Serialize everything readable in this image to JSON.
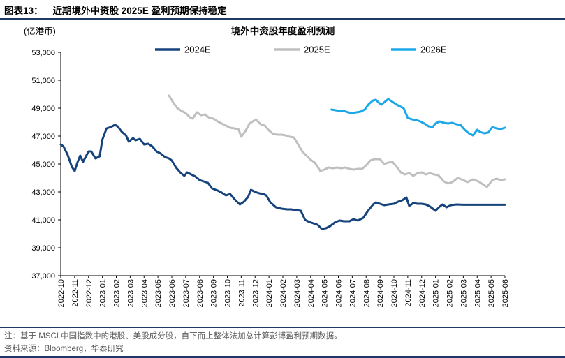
{
  "header": {
    "figure_label": "图表13：",
    "title": "近期境外中资股 2025E 盈利预期保持稳定"
  },
  "footer": {
    "note": "注：基于 MSCI 中国指数中的港股、美股成分股，自下而上整体法加总计算彭博盈利预期数据。",
    "source": "资料来源：Bloomberg，华泰研究"
  },
  "colors": {
    "rule": "#1F3864",
    "axis": "#000000",
    "note_text": "#595959"
  },
  "chart_data": {
    "type": "line",
    "title": "境外中资股年度盈利预测",
    "unit_label": "(亿港币)",
    "ylim": [
      37000,
      53000
    ],
    "ytick_step": 2000,
    "ytick_labels": [
      "37,000",
      "39,000",
      "41,000",
      "43,000",
      "45,000",
      "47,000",
      "49,000",
      "51,000",
      "53,000"
    ],
    "grid": false,
    "legend_position": "top",
    "x_categories": [
      "2022-10",
      "2022-11",
      "2022-12",
      "2023-01",
      "2023-02",
      "2023-03",
      "2023-04",
      "2023-05",
      "2023-06",
      "2023-07",
      "2023-08",
      "2023-09",
      "2023-10",
      "2023-11",
      "2023-12",
      "2024-01",
      "2024-02",
      "2024-03",
      "2024-04",
      "2024-05",
      "2024-06",
      "2024-07",
      "2024-08",
      "2024-09",
      "2024-10",
      "2024-11",
      "2024-12",
      "2025-01",
      "2025-02",
      "2025-03",
      "2025-04",
      "2025-05",
      "2025-06"
    ],
    "series": [
      {
        "name": "2024E",
        "color": "#16437C",
        "points": [
          [
            0,
            46400
          ],
          [
            0.2,
            46250
          ],
          [
            0.5,
            45650
          ],
          [
            0.8,
            44800
          ],
          [
            1,
            44500
          ],
          [
            1.2,
            45100
          ],
          [
            1.4,
            45600
          ],
          [
            1.6,
            45150
          ],
          [
            2,
            45900
          ],
          [
            2.2,
            45900
          ],
          [
            2.5,
            45400
          ],
          [
            2.8,
            45550
          ],
          [
            3,
            46750
          ],
          [
            3.3,
            47550
          ],
          [
            3.6,
            47650
          ],
          [
            3.9,
            47800
          ],
          [
            4.1,
            47700
          ],
          [
            4.4,
            47300
          ],
          [
            4.7,
            47050
          ],
          [
            4.9,
            46600
          ],
          [
            5.2,
            46850
          ],
          [
            5.4,
            46700
          ],
          [
            5.7,
            46800
          ],
          [
            6,
            46400
          ],
          [
            6.3,
            46450
          ],
          [
            6.6,
            46250
          ],
          [
            6.9,
            45900
          ],
          [
            7.2,
            45750
          ],
          [
            7.5,
            45500
          ],
          [
            7.8,
            45400
          ],
          [
            8,
            45250
          ],
          [
            8.3,
            44750
          ],
          [
            8.6,
            44400
          ],
          [
            8.9,
            44150
          ],
          [
            9.1,
            44400
          ],
          [
            9.4,
            44250
          ],
          [
            9.7,
            44100
          ],
          [
            10,
            43850
          ],
          [
            10.3,
            43750
          ],
          [
            10.6,
            43650
          ],
          [
            10.9,
            43250
          ],
          [
            11.3,
            43100
          ],
          [
            11.6,
            42950
          ],
          [
            11.9,
            42750
          ],
          [
            12.2,
            42850
          ],
          [
            12.5,
            42500
          ],
          [
            12.9,
            42100
          ],
          [
            13.2,
            42300
          ],
          [
            13.5,
            42650
          ],
          [
            13.7,
            43150
          ],
          [
            14,
            43000
          ],
          [
            14.3,
            42900
          ],
          [
            14.6,
            42850
          ],
          [
            14.8,
            42750
          ],
          [
            15.1,
            42250
          ],
          [
            15.5,
            41900
          ],
          [
            15.9,
            41800
          ],
          [
            16.3,
            41750
          ],
          [
            16.6,
            41750
          ],
          [
            16.9,
            41700
          ],
          [
            17.3,
            41650
          ],
          [
            17.6,
            41000
          ],
          [
            17.9,
            40850
          ],
          [
            18.2,
            40750
          ],
          [
            18.5,
            40650
          ],
          [
            18.8,
            40350
          ],
          [
            19.1,
            40400
          ],
          [
            19.4,
            40550
          ],
          [
            19.8,
            40850
          ],
          [
            20.1,
            40950
          ],
          [
            20.4,
            40900
          ],
          [
            20.8,
            40900
          ],
          [
            21.1,
            41050
          ],
          [
            21.4,
            40950
          ],
          [
            21.8,
            41150
          ],
          [
            22.1,
            41600
          ],
          [
            22.5,
            42100
          ],
          [
            22.7,
            42250
          ],
          [
            23,
            42150
          ],
          [
            23.3,
            42050
          ],
          [
            23.6,
            42100
          ],
          [
            24,
            42150
          ],
          [
            24.3,
            42300
          ],
          [
            24.6,
            42400
          ],
          [
            24.9,
            42600
          ],
          [
            25.1,
            42000
          ],
          [
            25.4,
            42200
          ],
          [
            25.7,
            42150
          ],
          [
            26,
            42150
          ],
          [
            26.3,
            42100
          ],
          [
            26.6,
            41950
          ],
          [
            27,
            41650
          ],
          [
            27.3,
            41950
          ],
          [
            27.5,
            42100
          ],
          [
            27.8,
            41900
          ],
          [
            28.1,
            42050
          ],
          [
            28.5,
            42100
          ],
          [
            29,
            42080
          ],
          [
            30,
            42080
          ],
          [
            31,
            42080
          ],
          [
            32,
            42080
          ]
        ]
      },
      {
        "name": "2025E",
        "color": "#BFBFBF",
        "points": [
          [
            7.8,
            49900
          ],
          [
            8.1,
            49400
          ],
          [
            8.4,
            49000
          ],
          [
            8.7,
            48800
          ],
          [
            9,
            48650
          ],
          [
            9.3,
            48350
          ],
          [
            9.5,
            48250
          ],
          [
            9.8,
            48700
          ],
          [
            10.1,
            48500
          ],
          [
            10.4,
            48550
          ],
          [
            10.7,
            48300
          ],
          [
            11,
            48250
          ],
          [
            11.3,
            48050
          ],
          [
            11.6,
            47900
          ],
          [
            11.9,
            47750
          ],
          [
            12.2,
            47600
          ],
          [
            12.5,
            47550
          ],
          [
            12.8,
            47500
          ],
          [
            13,
            46950
          ],
          [
            13.3,
            47350
          ],
          [
            13.6,
            47900
          ],
          [
            13.9,
            48100
          ],
          [
            14.1,
            48150
          ],
          [
            14.4,
            47850
          ],
          [
            14.7,
            47750
          ],
          [
            15,
            47400
          ],
          [
            15.3,
            47150
          ],
          [
            15.6,
            47100
          ],
          [
            15.9,
            47100
          ],
          [
            16.2,
            47050
          ],
          [
            16.5,
            46950
          ],
          [
            16.8,
            46900
          ],
          [
            17.1,
            46400
          ],
          [
            17.4,
            45900
          ],
          [
            17.7,
            45600
          ],
          [
            18,
            45300
          ],
          [
            18.3,
            45100
          ],
          [
            18.7,
            44500
          ],
          [
            19,
            44600
          ],
          [
            19.3,
            44750
          ],
          [
            19.6,
            44700
          ],
          [
            19.9,
            44750
          ],
          [
            20.2,
            44700
          ],
          [
            20.5,
            44750
          ],
          [
            20.8,
            44650
          ],
          [
            21.1,
            44600
          ],
          [
            21.4,
            44650
          ],
          [
            21.7,
            44650
          ],
          [
            22,
            44900
          ],
          [
            22.3,
            45250
          ],
          [
            22.6,
            45350
          ],
          [
            23,
            45350
          ],
          [
            23.3,
            45000
          ],
          [
            23.6,
            45100
          ],
          [
            23.9,
            45150
          ],
          [
            24.2,
            44800
          ],
          [
            24.5,
            44400
          ],
          [
            24.8,
            44250
          ],
          [
            25.1,
            44350
          ],
          [
            25.4,
            44150
          ],
          [
            25.7,
            44350
          ],
          [
            26,
            44400
          ],
          [
            26.3,
            44250
          ],
          [
            26.6,
            44350
          ],
          [
            26.9,
            44250
          ],
          [
            27.2,
            44200
          ],
          [
            27.6,
            43750
          ],
          [
            27.9,
            43600
          ],
          [
            28.2,
            43700
          ],
          [
            28.6,
            44000
          ],
          [
            29,
            43850
          ],
          [
            29.3,
            43700
          ],
          [
            29.7,
            43900
          ],
          [
            30.1,
            43750
          ],
          [
            30.4,
            43550
          ],
          [
            30.7,
            43350
          ],
          [
            31.1,
            43850
          ],
          [
            31.4,
            43950
          ],
          [
            31.7,
            43850
          ],
          [
            32,
            43900
          ]
        ]
      },
      {
        "name": "2026E",
        "color": "#1CA8E8",
        "points": [
          [
            19.5,
            48900
          ],
          [
            19.8,
            48850
          ],
          [
            20.1,
            48800
          ],
          [
            20.4,
            48800
          ],
          [
            20.7,
            48700
          ],
          [
            21,
            48650
          ],
          [
            21.3,
            48700
          ],
          [
            21.6,
            48750
          ],
          [
            21.9,
            48900
          ],
          [
            22.2,
            49300
          ],
          [
            22.5,
            49550
          ],
          [
            22.7,
            49600
          ],
          [
            22.9,
            49400
          ],
          [
            23.1,
            49250
          ],
          [
            23.4,
            49500
          ],
          [
            23.6,
            49650
          ],
          [
            23.9,
            49450
          ],
          [
            24.2,
            49250
          ],
          [
            24.5,
            49100
          ],
          [
            24.7,
            49000
          ],
          [
            25,
            48300
          ],
          [
            25.3,
            48200
          ],
          [
            25.6,
            48150
          ],
          [
            25.9,
            48050
          ],
          [
            26.2,
            47900
          ],
          [
            26.5,
            47700
          ],
          [
            26.8,
            47650
          ],
          [
            27,
            47900
          ],
          [
            27.3,
            48050
          ],
          [
            27.6,
            47950
          ],
          [
            27.9,
            47900
          ],
          [
            28.2,
            47950
          ],
          [
            28.5,
            47850
          ],
          [
            28.8,
            47800
          ],
          [
            29.1,
            47450
          ],
          [
            29.4,
            47200
          ],
          [
            29.7,
            47050
          ],
          [
            30,
            47450
          ],
          [
            30.2,
            47300
          ],
          [
            30.5,
            47200
          ],
          [
            30.8,
            47250
          ],
          [
            31.1,
            47650
          ],
          [
            31.4,
            47550
          ],
          [
            31.7,
            47500
          ],
          [
            32,
            47600
          ]
        ]
      }
    ]
  }
}
